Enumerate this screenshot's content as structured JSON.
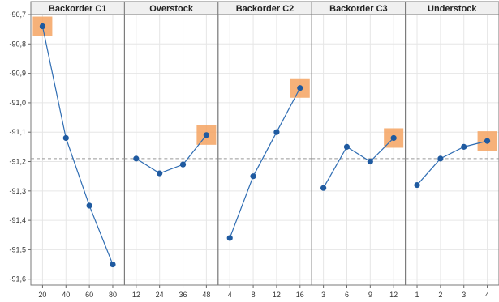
{
  "chart_data": {
    "type": "line",
    "ylim": [
      -91.62,
      -90.7
    ],
    "y_ticks": [
      "-90,7",
      "-90,8",
      "-90,9",
      "-91,0",
      "-91,1",
      "-91,2",
      "-91,3",
      "-91,4",
      "-91,5",
      "-91,6"
    ],
    "y_tick_values": [
      -90.7,
      -90.8,
      -90.9,
      -91.0,
      -91.1,
      -91.2,
      -91.3,
      -91.4,
      -91.5,
      -91.6
    ],
    "reference_line": -91.19,
    "grid": true,
    "colors": {
      "line": "#2f6db3",
      "point": "#1f5aa0",
      "highlight": "#f4a361",
      "reference": "#999999",
      "header_bg": "#f0f0f0"
    },
    "panels": [
      {
        "title": "Backorder C1",
        "categories": [
          "20",
          "40",
          "60",
          "80"
        ],
        "values": [
          -90.74,
          -91.12,
          -91.35,
          -91.55
        ],
        "highlight_index": 0
      },
      {
        "title": "Overstock",
        "categories": [
          "12",
          "24",
          "36",
          "48"
        ],
        "values": [
          -91.19,
          -91.24,
          -91.21,
          -91.11
        ],
        "highlight_index": 3
      },
      {
        "title": "Backorder C2",
        "categories": [
          "4",
          "8",
          "12",
          "16"
        ],
        "values": [
          -91.46,
          -91.25,
          -91.1,
          -90.95
        ],
        "highlight_index": 3
      },
      {
        "title": "Backorder C3",
        "categories": [
          "3",
          "6",
          "9",
          "12"
        ],
        "values": [
          -91.29,
          -91.15,
          -91.2,
          -91.12
        ],
        "highlight_index": 3
      },
      {
        "title": "Understock",
        "categories": [
          "1",
          "2",
          "3",
          "4"
        ],
        "values": [
          -91.28,
          -91.19,
          -91.15,
          -91.13
        ],
        "highlight_index": 3
      }
    ]
  }
}
